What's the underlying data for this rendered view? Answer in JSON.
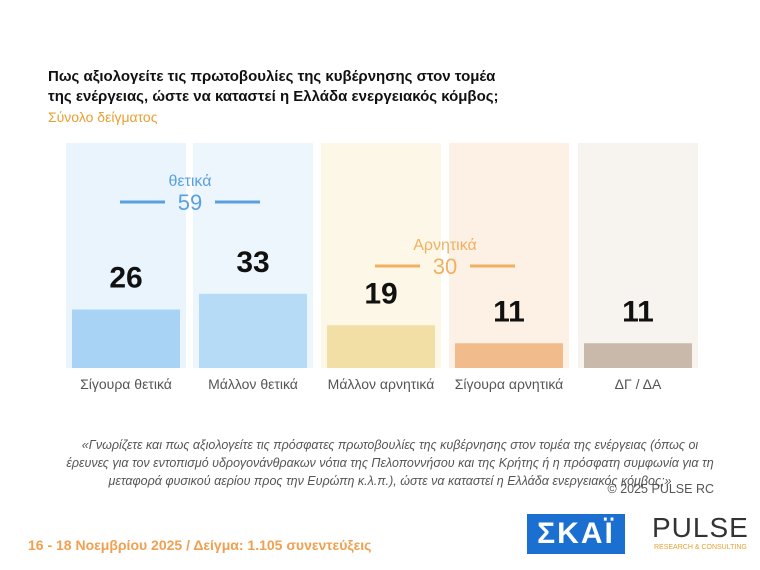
{
  "chart_data": {
    "type": "bar",
    "title_lines": [
      "Πως αξιολογείτε τις πρωτοβουλίες της κυβέρνησης στον τομέα",
      "της ενέργειας, ώστε να καταστεί η Ελλάδα ενεργειακός κόμβος;"
    ],
    "subtitle": "Σύνολο δείγματος",
    "categories": [
      "Σίγουρα θετικά",
      "Μάλλον θετικά",
      "Μάλλον αρνητικά",
      "Σίγουρα αρνητικά",
      "ΔΓ / ΔΑ"
    ],
    "values": [
      26,
      33,
      19,
      11,
      11
    ],
    "colors": [
      "#a9d3f5",
      "#b5dbf7",
      "#f2dfa6",
      "#f1bb8c",
      "#c9b9aa"
    ],
    "panel_colors": [
      "#eaf4fd",
      "#eef6fd",
      "#fdf7e8",
      "#fdf1e6",
      "#f7f3ef"
    ],
    "ylim": [
      0,
      100
    ],
    "groups": [
      {
        "label": "θετικά",
        "value": 59,
        "color": "#5aa0e0"
      },
      {
        "label": "Αρνητικά",
        "value": 30,
        "color": "#f0b060"
      }
    ],
    "note": "«Γνωρίζετε και πως αξιολογείτε τις πρόσφατες πρωτοβουλίες της κυβέρνησης στον τομέα της ενέργειας (όπως οι έρευνες για τον εντοπισμό υδρογονάνθρακων νότια της Πελοποννήσου και της Κρήτης ή η πρόσφατη συμφωνία για τη μεταφορά φυσικού αερίου προς την Ευρώπη κ.λ.π.), ώστε να καταστεί η Ελλάδα ενεργειακός κόμβος;»",
    "copyright": "©  2025  PULSE RC",
    "footer": "16 - 18 Νοεμβρίου 2025  /  Δείγμα:  1.105 συνεντεύξεις",
    "logos": {
      "skai": "ΣΚΑΪ",
      "pulse": "PULSE",
      "pulse_sub": "RESEARCH & CONSULTING"
    }
  }
}
